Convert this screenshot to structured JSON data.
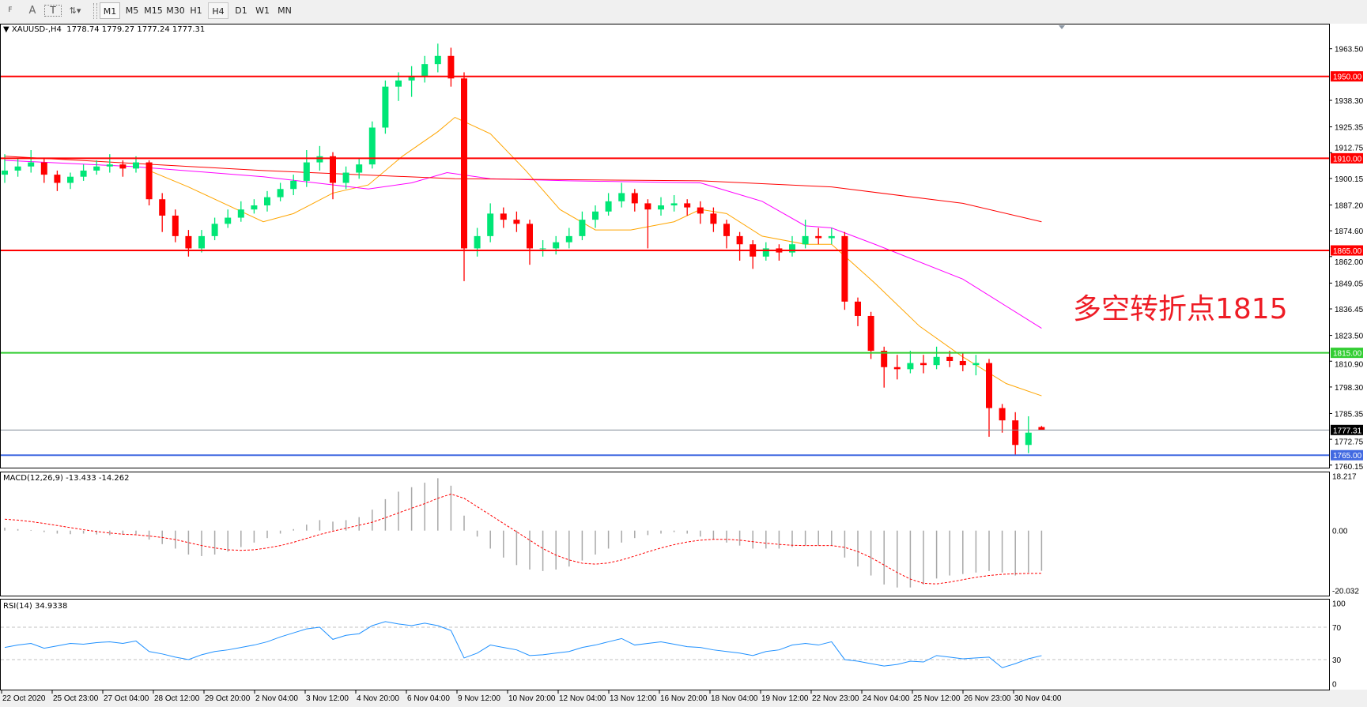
{
  "toolbar": {
    "tools": [
      {
        "name": "period-separator-tool",
        "glyph": "F"
      },
      {
        "name": "text-tool",
        "glyph": "A"
      },
      {
        "name": "text-label-tool",
        "glyph": "T"
      },
      {
        "name": "arrows-tool",
        "glyph": "⇅▾"
      }
    ],
    "timeframes": [
      "M1",
      "M5",
      "M15",
      "M30",
      "H1",
      "H4",
      "D1",
      "W1",
      "MN"
    ],
    "pressed": "M1",
    "selected": "H4"
  },
  "chart": {
    "symbol_header": "XAUUSD-,H4  1778.74 1779.27 1777.24 1777.31",
    "annotation": "多空转折点1815",
    "colors": {
      "bull": "#00e676",
      "bear": "#ff0000",
      "ma_fast": "#ffa500",
      "ma_mid": "#ff00ff",
      "ma_slow": "#ff0000",
      "macd_hist": "#a8a8a8",
      "macd_signal": "#ff0000",
      "rsi": "#1e90ff",
      "level_red": "#ff0000",
      "level_green": "#32cd32",
      "level_blue": "#4169e1",
      "current": "#7f8a96"
    },
    "price_ticks": [
      "1963.50",
      "1938.30",
      "1925.35",
      "1912.75",
      "1900.15",
      "1887.20",
      "1874.60",
      "1862.00",
      "1849.05",
      "1836.45",
      "1823.50",
      "1810.90",
      "1798.30",
      "1785.35",
      "1772.75",
      "1760.15"
    ],
    "levels": [
      {
        "price": 1950.0,
        "label": "1950.00",
        "color": "#ff0000"
      },
      {
        "price": 1910.0,
        "label": "1910.00",
        "color": "#ff0000"
      },
      {
        "price": 1865.0,
        "label": "1865.00",
        "color": "#ff0000"
      },
      {
        "price": 1815.0,
        "label": "1815.00",
        "color": "#32cd32"
      },
      {
        "price": 1765.0,
        "label": "1765.00",
        "color": "#4169e1"
      }
    ],
    "current_price": {
      "price": 1777.31,
      "label": "1777.31"
    },
    "candles": [
      [
        1902,
        1912,
        1898,
        1904
      ],
      [
        1904,
        1910,
        1901,
        1906
      ],
      [
        1906,
        1914,
        1903,
        1908
      ],
      [
        1908,
        1910,
        1898,
        1902
      ],
      [
        1902,
        1904,
        1894,
        1898
      ],
      [
        1898,
        1903,
        1895,
        1901
      ],
      [
        1901,
        1907,
        1899,
        1904
      ],
      [
        1904,
        1909,
        1902,
        1906
      ],
      [
        1906,
        1912,
        1903,
        1907
      ],
      [
        1907,
        1909,
        1901,
        1905
      ],
      [
        1905,
        1911,
        1903,
        1908
      ],
      [
        1908,
        1909,
        1887,
        1890
      ],
      [
        1890,
        1893,
        1874,
        1882
      ],
      [
        1882,
        1885,
        1869,
        1872
      ],
      [
        1872,
        1875,
        1862,
        1866
      ],
      [
        1866,
        1875,
        1864,
        1872
      ],
      [
        1872,
        1881,
        1870,
        1878
      ],
      [
        1878,
        1885,
        1876,
        1881
      ],
      [
        1881,
        1889,
        1879,
        1885
      ],
      [
        1885,
        1890,
        1883,
        1887
      ],
      [
        1887,
        1894,
        1884,
        1891
      ],
      [
        1891,
        1898,
        1889,
        1895
      ],
      [
        1895,
        1902,
        1892,
        1899
      ],
      [
        1899,
        1914,
        1896,
        1908
      ],
      [
        1908,
        1916,
        1904,
        1911
      ],
      [
        1911,
        1913,
        1890,
        1898
      ],
      [
        1898,
        1906,
        1895,
        1903
      ],
      [
        1903,
        1910,
        1900,
        1907
      ],
      [
        1907,
        1928,
        1905,
        1925
      ],
      [
        1925,
        1948,
        1922,
        1945
      ],
      [
        1945,
        1952,
        1938,
        1948
      ],
      [
        1948,
        1955,
        1940,
        1950
      ],
      [
        1950,
        1960,
        1947,
        1956
      ],
      [
        1956,
        1966,
        1952,
        1960
      ],
      [
        1960,
        1964,
        1945,
        1949
      ],
      [
        1949,
        1952,
        1850,
        1866
      ],
      [
        1866,
        1876,
        1862,
        1872
      ],
      [
        1872,
        1888,
        1869,
        1883
      ],
      [
        1883,
        1886,
        1876,
        1880
      ],
      [
        1880,
        1884,
        1874,
        1878
      ],
      [
        1878,
        1880,
        1858,
        1866
      ],
      [
        1866,
        1870,
        1862,
        1866
      ],
      [
        1866,
        1872,
        1863,
        1869
      ],
      [
        1869,
        1876,
        1866,
        1872
      ],
      [
        1872,
        1884,
        1870,
        1880
      ],
      [
        1880,
        1887,
        1876,
        1884
      ],
      [
        1884,
        1893,
        1882,
        1889
      ],
      [
        1889,
        1898,
        1886,
        1893
      ],
      [
        1893,
        1895,
        1884,
        1888
      ],
      [
        1888,
        1890,
        1866,
        1885
      ],
      [
        1885,
        1891,
        1882,
        1887
      ],
      [
        1887,
        1892,
        1884,
        1888
      ],
      [
        1888,
        1890,
        1882,
        1886
      ],
      [
        1886,
        1889,
        1878,
        1883
      ],
      [
        1883,
        1886,
        1874,
        1878
      ],
      [
        1878,
        1880,
        1866,
        1872
      ],
      [
        1872,
        1874,
        1860,
        1868
      ],
      [
        1868,
        1870,
        1856,
        1862
      ],
      [
        1862,
        1869,
        1860,
        1866
      ],
      [
        1866,
        1868,
        1860,
        1864
      ],
      [
        1864,
        1872,
        1862,
        1868
      ],
      [
        1868,
        1880,
        1866,
        1872
      ],
      [
        1872,
        1876,
        1868,
        1871
      ],
      [
        1871,
        1876,
        1868,
        1872
      ],
      [
        1872,
        1874,
        1836,
        1840
      ],
      [
        1840,
        1842,
        1828,
        1833
      ],
      [
        1833,
        1835,
        1812,
        1816
      ],
      [
        1816,
        1818,
        1798,
        1808
      ],
      [
        1808,
        1814,
        1802,
        1807
      ],
      [
        1807,
        1816,
        1805,
        1810
      ],
      [
        1810,
        1814,
        1805,
        1809
      ],
      [
        1809,
        1818,
        1807,
        1813
      ],
      [
        1813,
        1816,
        1808,
        1811
      ],
      [
        1811,
        1815,
        1806,
        1809
      ],
      [
        1809,
        1814,
        1804,
        1810
      ],
      [
        1810,
        1812,
        1774,
        1788
      ],
      [
        1788,
        1790,
        1776,
        1782
      ],
      [
        1782,
        1786,
        1765,
        1770
      ],
      [
        1770,
        1784,
        1766,
        1776
      ],
      [
        1778.74,
        1779.27,
        1777.24,
        1777.31
      ]
    ],
    "moving_averages": [
      {
        "color": "#ffa500",
        "points": [
          [
            11,
            1904
          ],
          [
            14,
            1896
          ],
          [
            19.7,
            1879
          ],
          [
            22,
            1883
          ],
          [
            25,
            1893
          ],
          [
            27.7,
            1897
          ],
          [
            30.3,
            1911
          ],
          [
            33,
            1923
          ],
          [
            34.3,
            1930
          ],
          [
            37,
            1922
          ],
          [
            39.7,
            1904
          ],
          [
            42.3,
            1885
          ],
          [
            45,
            1875
          ],
          [
            47.7,
            1875
          ],
          [
            51,
            1879
          ],
          [
            53,
            1885
          ],
          [
            55,
            1883
          ],
          [
            57.7,
            1872
          ],
          [
            61,
            1868
          ],
          [
            63,
            1868
          ],
          [
            66.3,
            1849
          ],
          [
            69.7,
            1828
          ],
          [
            73,
            1813
          ],
          [
            76.3,
            1800
          ],
          [
            79,
            1794
          ]
        ]
      },
      {
        "color": "#ff00ff",
        "points": [
          [
            0,
            1909
          ],
          [
            9.7,
            1906
          ],
          [
            19.7,
            1901
          ],
          [
            27.7,
            1895
          ],
          [
            31,
            1898
          ],
          [
            33.7,
            1903
          ],
          [
            37,
            1900
          ],
          [
            43,
            1899
          ],
          [
            53,
            1898
          ],
          [
            57.7,
            1889
          ],
          [
            61,
            1877
          ],
          [
            63,
            1876
          ],
          [
            66.3,
            1868
          ],
          [
            73,
            1851
          ],
          [
            79,
            1827
          ]
        ]
      },
      {
        "color": "#ff0000",
        "points": [
          [
            0,
            1911
          ],
          [
            19.7,
            1904
          ],
          [
            34.3,
            1900
          ],
          [
            53,
            1899
          ],
          [
            63,
            1896
          ],
          [
            73,
            1888
          ],
          [
            79,
            1879
          ]
        ]
      }
    ]
  },
  "macd": {
    "label": "MACD(12,26,9) -13.433 -14.262",
    "ticks": [
      "18.217",
      "0.00",
      "-20.032"
    ],
    "histogram": [
      1.0,
      0.5,
      0.2,
      -0.5,
      -1,
      -1.2,
      -1,
      -1.3,
      -1.5,
      -1.4,
      -1.2,
      -3,
      -4.5,
      -6,
      -8,
      -8.5,
      -8,
      -7,
      -5.5,
      -4,
      -2.5,
      -1,
      0.5,
      2,
      3.5,
      3,
      3.5,
      4.5,
      7,
      10.5,
      13,
      14.5,
      16,
      17.5,
      15,
      5,
      -2,
      -6,
      -9,
      -11.5,
      -13,
      -13.5,
      -13,
      -12,
      -10,
      -8,
      -6,
      -4,
      -2.5,
      -1.5,
      -1,
      -0.5,
      -1,
      -2,
      -3,
      -4,
      -5,
      -6,
      -6,
      -6,
      -5.5,
      -5,
      -5,
      -5,
      -9,
      -12,
      -15,
      -18,
      -19,
      -19,
      -18,
      -16,
      -15,
      -14.5,
      -14,
      -13.5,
      -14,
      -15,
      -14,
      -13.433
    ],
    "signal": [
      3.8,
      3.5,
      3,
      2.4,
      1.7,
      1,
      0.3,
      -0.3,
      -0.8,
      -1.2,
      -1.4,
      -1.8,
      -2.3,
      -3,
      -4,
      -5,
      -5.8,
      -6.4,
      -6.6,
      -6.4,
      -5.8,
      -5,
      -3.9,
      -2.6,
      -1.3,
      -0.2,
      0.8,
      1.8,
      2.8,
      4.3,
      5.9,
      7.5,
      9,
      10.8,
      12.2,
      10.8,
      8,
      5.2,
      2.4,
      -0.4,
      -3.2,
      -6,
      -8.2,
      -9.8,
      -10.9,
      -11.2,
      -10.8,
      -9.8,
      -8.5,
      -7.1,
      -5.8,
      -4.7,
      -3.8,
      -3.2,
      -2.9,
      -2.9,
      -3.2,
      -3.7,
      -4.2,
      -4.6,
      -4.9,
      -5,
      -5,
      -5,
      -5.6,
      -7,
      -9,
      -11.5,
      -14,
      -16.2,
      -17.6,
      -17.8,
      -17.2,
      -16.4,
      -15.6,
      -15,
      -14.6,
      -14.4,
      -14.3,
      -14.262
    ]
  },
  "rsi": {
    "label": "RSI(14) 34.9338",
    "ticks": [
      "100",
      "70",
      "30",
      "0"
    ],
    "values": [
      45,
      48,
      50,
      44,
      47,
      50,
      49,
      51,
      52,
      50,
      53,
      40,
      37,
      33,
      30,
      36,
      40,
      42,
      45,
      48,
      52,
      58,
      63,
      68,
      70,
      55,
      60,
      62,
      72,
      77,
      74,
      72,
      75,
      72,
      66,
      32,
      38,
      48,
      45,
      42,
      35,
      36,
      38,
      40,
      45,
      48,
      52,
      56,
      48,
      50,
      52,
      49,
      46,
      45,
      42,
      40,
      38,
      35,
      40,
      42,
      48,
      50,
      48,
      52,
      30,
      28,
      25,
      22,
      24,
      28,
      27,
      35,
      33,
      31,
      32,
      33,
      20,
      25,
      31,
      34.9338
    ]
  },
  "time_axis": [
    "22 Oct 2020",
    "25 Oct 23:00",
    "27 Oct 04:00",
    "28 Oct 12:00",
    "29 Oct 20:00",
    "2 Nov 04:00",
    "3 Nov 12:00",
    "4 Nov 20:00",
    "6 Nov 04:00",
    "9 Nov 12:00",
    "10 Nov 20:00",
    "12 Nov 04:00",
    "13 Nov 12:00",
    "16 Nov 20:00",
    "18 Nov 04:00",
    "19 Nov 12:00",
    "22 Nov 23:00",
    "24 Nov 04:00",
    "25 Nov 12:00",
    "26 Nov 23:00",
    "30 Nov 04:00"
  ]
}
